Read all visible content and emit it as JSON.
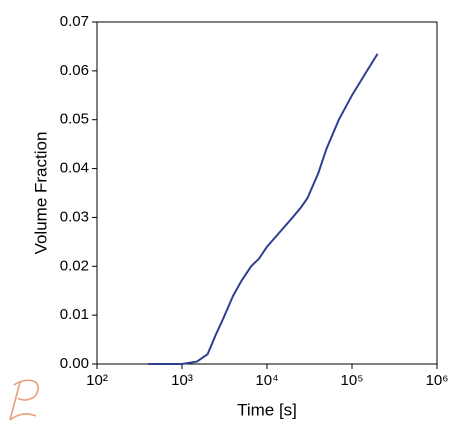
{
  "chart_data": {
    "type": "line",
    "xlabel": "Time [s]",
    "ylabel": "Volume Fraction",
    "xscale": "log",
    "x": [
      400,
      1000,
      1500,
      2000,
      2500,
      3000,
      4000,
      5000,
      6500,
      8000,
      10000,
      15000,
      20000,
      25000,
      30000,
      40000,
      50000,
      70000,
      100000,
      150000,
      200000
    ],
    "series": [
      {
        "name": "Volume Fraction",
        "color": "#2f3f91",
        "values": [
          0,
          0,
          0.0005,
          0.002,
          0.006,
          0.009,
          0.014,
          0.017,
          0.02,
          0.0215,
          0.024,
          0.0275,
          0.03,
          0.032,
          0.034,
          0.039,
          0.044,
          0.05,
          0.055,
          0.06,
          0.0635
        ]
      }
    ],
    "xlim": [
      100,
      1000000
    ],
    "xticks": [
      {
        "value": 100,
        "label": "10²"
      },
      {
        "value": 1000,
        "label": "10³"
      },
      {
        "value": 10000,
        "label": "10⁴"
      },
      {
        "value": 100000,
        "label": "10⁵"
      },
      {
        "value": 1000000,
        "label": "10⁶"
      }
    ],
    "ylim": [
      0,
      0.07
    ],
    "yticks": [
      {
        "value": 0,
        "label": "0.00"
      },
      0.01,
      0.02,
      0.03,
      0.04,
      0.05,
      0.06,
      0.07
    ],
    "grid": false
  }
}
